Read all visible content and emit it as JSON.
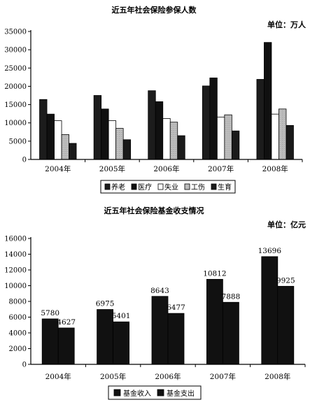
{
  "chart_data": [
    {
      "type": "bar",
      "title": "近五年社会保险参保人数",
      "unit_label": "单位：万人",
      "categories": [
        "2004年",
        "2005年",
        "2006年",
        "2007年",
        "2008年"
      ],
      "ylim": [
        0,
        35000
      ],
      "yticks": [
        "0",
        "5000",
        "10000",
        "15000",
        "20000",
        "25000",
        "30000",
        "35000"
      ],
      "legend_position": "bottom",
      "grid": false,
      "series": [
        {
          "name": "养老",
          "values": [
            16400,
            17500,
            18800,
            20100,
            21900
          ],
          "color": "#1c1c1c"
        },
        {
          "name": "医疗",
          "values": [
            12400,
            13800,
            15800,
            22300,
            32000
          ],
          "color": "#101010"
        },
        {
          "name": "失业",
          "values": [
            10600,
            10600,
            11200,
            11600,
            12400
          ],
          "color": "#ffffff"
        },
        {
          "name": "工伤",
          "values": [
            6800,
            8500,
            10200,
            12200,
            13800
          ],
          "color": "#bdbdbd"
        },
        {
          "name": "生育",
          "values": [
            4400,
            5400,
            6500,
            7800,
            9300
          ],
          "color": "#1a1a1a"
        }
      ]
    },
    {
      "type": "bar",
      "title": "近五年社会保险基金收支情况",
      "unit_label": "单位：亿元",
      "categories": [
        "2004年",
        "2005年",
        "2006年",
        "2007年",
        "2008年"
      ],
      "ylim": [
        0,
        16000
      ],
      "yticks": [
        "0",
        "2000",
        "4000",
        "6000",
        "8000",
        "10000",
        "12000",
        "14000",
        "16000"
      ],
      "legend_position": "bottom",
      "grid": false,
      "series": [
        {
          "name": "基金收入",
          "values": [
            5780,
            6975,
            8643,
            10812,
            13696
          ],
          "color": "#111111"
        },
        {
          "name": "基金支出",
          "values": [
            4627,
            5401,
            6477,
            7888,
            9925
          ],
          "color": "#111111"
        }
      ],
      "data_labels": [
        [
          "5780",
          "6975",
          "8643",
          "10812",
          "13696"
        ],
        [
          "4627",
          "5401",
          "6477",
          "7888",
          "9925"
        ]
      ]
    }
  ]
}
